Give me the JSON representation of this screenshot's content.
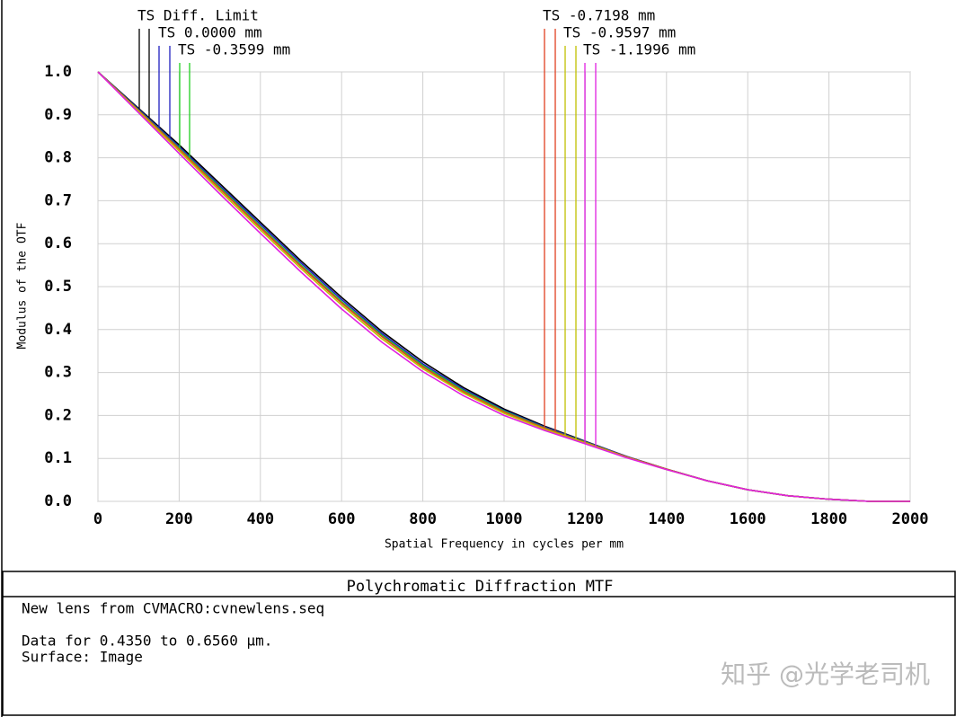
{
  "chart_data": {
    "type": "line",
    "title": "Polychromatic Diffraction MTF",
    "xlabel": "Spatial Frequency in cycles per mm",
    "ylabel": "Modulus of the OTF",
    "x": [
      0,
      100,
      200,
      300,
      400,
      500,
      600,
      700,
      800,
      900,
      1000,
      1100,
      1200,
      1300,
      1400,
      1500,
      1600,
      1700,
      1800,
      1900,
      2000
    ],
    "series": [
      {
        "name": "TS Diff. Limit",
        "color": "#000000",
        "values": [
          1,
          0.915,
          0.83,
          0.74,
          0.65,
          0.56,
          0.475,
          0.395,
          0.325,
          0.265,
          0.215,
          0.175,
          0.14,
          0.105,
          0.075,
          0.048,
          0.027,
          0.013,
          0.005,
          0,
          0
        ]
      },
      {
        "name": "TS 0.0000 mm",
        "color": "#2020c0",
        "values": [
          1,
          0.913,
          0.826,
          0.735,
          0.645,
          0.555,
          0.47,
          0.39,
          0.32,
          0.261,
          0.212,
          0.173,
          0.139,
          0.105,
          0.075,
          0.048,
          0.027,
          0.013,
          0.005,
          0,
          0
        ]
      },
      {
        "name": "TS -0.3599 mm",
        "color": "#20d020",
        "values": [
          1,
          0.911,
          0.822,
          0.731,
          0.64,
          0.55,
          0.465,
          0.386,
          0.316,
          0.258,
          0.21,
          0.171,
          0.138,
          0.104,
          0.075,
          0.048,
          0.027,
          0.013,
          0.005,
          0,
          0
        ]
      },
      {
        "name": "TS -0.7198 mm",
        "color": "#e04020",
        "values": [
          1,
          0.91,
          0.82,
          0.728,
          0.637,
          0.547,
          0.462,
          0.383,
          0.313,
          0.255,
          0.208,
          0.17,
          0.137,
          0.104,
          0.075,
          0.048,
          0.027,
          0.013,
          0.005,
          0,
          0
        ]
      },
      {
        "name": "TS -0.9597 mm",
        "color": "#c0c000",
        "values": [
          1,
          0.908,
          0.816,
          0.723,
          0.632,
          0.542,
          0.457,
          0.378,
          0.309,
          0.252,
          0.205,
          0.168,
          0.136,
          0.103,
          0.074,
          0.048,
          0.027,
          0.013,
          0.005,
          0,
          0
        ]
      },
      {
        "name": "TS -1.1996 mm",
        "color": "#e020e0",
        "values": [
          1,
          0.905,
          0.81,
          0.716,
          0.624,
          0.534,
          0.448,
          0.37,
          0.302,
          0.246,
          0.2,
          0.165,
          0.134,
          0.102,
          0.074,
          0.048,
          0.027,
          0.013,
          0.005,
          0,
          0
        ]
      }
    ],
    "xlim": [
      0,
      2000
    ],
    "xticks": [
      0,
      200,
      400,
      600,
      800,
      1000,
      1200,
      1400,
      1600,
      1800,
      2000
    ],
    "ylim": [
      0,
      1
    ],
    "yticks": [
      {
        "value": 0,
        "label": "0.0"
      },
      0.1,
      0.2,
      0.3,
      0.4,
      0.5,
      0.6,
      0.7,
      0.8,
      0.9,
      {
        "value": 1,
        "label": "1.0"
      }
    ],
    "grid": true
  },
  "info": {
    "lines": [
      "New lens from CVMACRO:cvnewlens.seq",
      "Data for 0.4350 to 0.6560 µm.",
      "Surface: Image"
    ]
  },
  "watermark": "知乎 @光学老司机"
}
